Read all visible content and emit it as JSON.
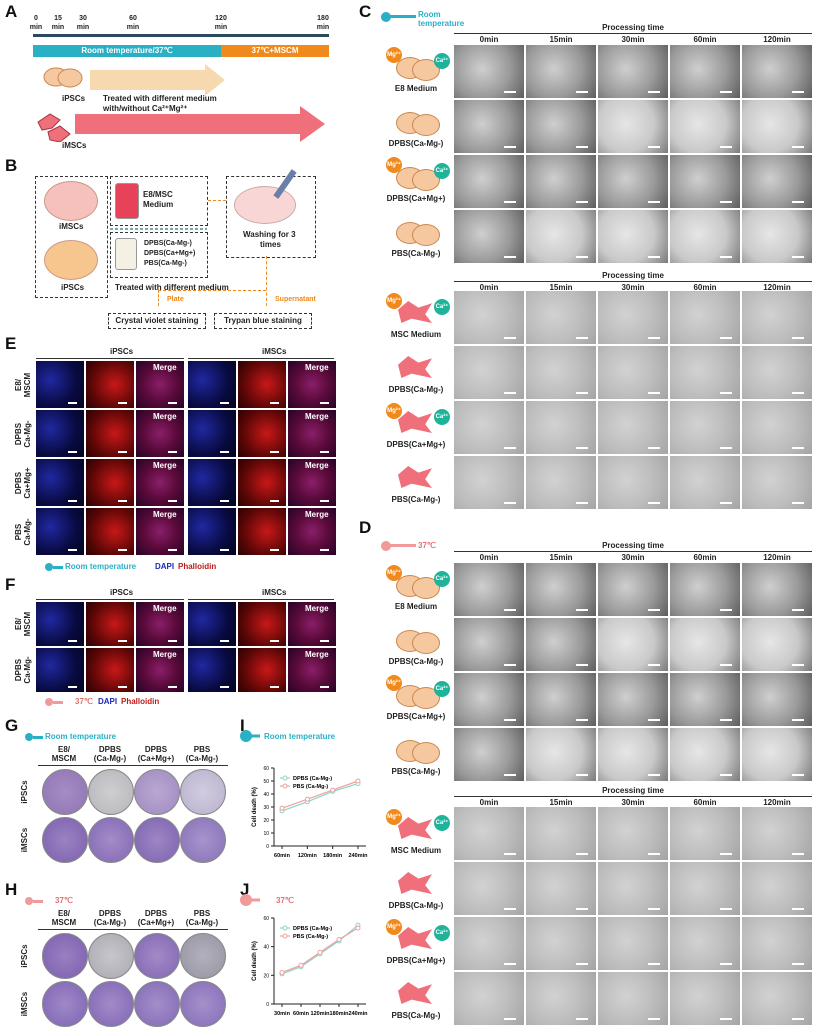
{
  "panel_letters": {
    "A": "A",
    "B": "B",
    "C": "C",
    "D": "D",
    "E": "E",
    "F": "F",
    "G": "G",
    "H": "H",
    "I": "I",
    "J": "J"
  },
  "panelA": {
    "times": [
      "0",
      "15",
      "30",
      "60",
      "120",
      "180"
    ],
    "unit": "min",
    "bar_room": "Room temperature/37℃",
    "bar_mscm": "37℃+MSCM",
    "ipsc_label": "iPSCs",
    "imsc_label": "iMSCs",
    "treat_line1": "Treated with different medium",
    "treat_line2": "with/without Ca²⁺Mg²⁺",
    "colors": {
      "teal": "#2ab0c5",
      "orange": "#f08a1c",
      "arrow_beige": "#f7d9b0",
      "arrow_pink": "#ef6f7b"
    }
  },
  "panelB": {
    "imsc": "iMSCs",
    "ipsc": "iPSCs",
    "medium1": "E8/MSC",
    "medium2": "Medium",
    "buf1": "DPBS(Ca-Mg-)",
    "buf2": "DPBS(Ca+Mg+)",
    "buf3": "PBS(Ca-Mg-)",
    "treated": "Treated with different medium",
    "washing1": "Washing for 3",
    "washing2": "times",
    "plate": "Plate",
    "supernatant": "Supernatant",
    "cv": "Crystal violet staining",
    "tb": "Trypan blue staining"
  },
  "panelC": {
    "legend": "Room",
    "legend2": "temperature",
    "header": "Processing time",
    "times": [
      "0min",
      "15min",
      "30min",
      "60min",
      "120min"
    ],
    "ipsc_rows": [
      "E8 Medium",
      "DPBS(Ca-Mg-)",
      "DPBS(Ca+Mg+)",
      "PBS(Ca-Mg-)"
    ],
    "imsc_rows": [
      "MSC Medium",
      "DPBS(Ca-Mg-)",
      "DPBS(Ca+Mg+)",
      "PBS(Ca-Mg-)"
    ],
    "mg": "Mg²⁺",
    "ca": "Ca²⁺"
  },
  "panelD": {
    "legend": "37℃",
    "header": "Processing time",
    "times": [
      "0min",
      "15min",
      "30min",
      "60min",
      "120min"
    ],
    "ipsc_rows": [
      "E8 Medium",
      "DPBS(Ca-Mg-)",
      "DPBS(Ca+Mg+)",
      "PBS(Ca-Mg-)"
    ],
    "imsc_rows": [
      "MSC Medium",
      "DPBS(Ca-Mg-)",
      "DPBS(Ca+Mg+)",
      "PBS(Ca-Mg-)"
    ]
  },
  "panelE": {
    "ipsc": "iPSCs",
    "imsc": "iMSCs",
    "merge": "Merge",
    "rows": [
      [
        "E8/",
        "MSCM"
      ],
      [
        "DPBS",
        "Ca-Mg-"
      ],
      [
        "DPBS",
        "Ca+Mg+"
      ],
      [
        "PBS",
        "Ca-Mg-"
      ]
    ],
    "legend": "Room temperature",
    "dapi": "DAPI",
    "phalloidin": "Phalloidin"
  },
  "panelF": {
    "ipsc": "iPSCs",
    "imsc": "iMSCs",
    "merge": "Merge",
    "rows": [
      [
        "E8/",
        "MSCM"
      ],
      [
        "DPBS",
        "Ca-Mg-"
      ]
    ],
    "legend": "37℃",
    "dapi": "DAPI",
    "phalloidin": "Phalloidin"
  },
  "panelG": {
    "legend": "Room temperature",
    "cols": [
      [
        "E8/",
        "MSCM"
      ],
      [
        "DPBS",
        "(Ca-Mg-)"
      ],
      [
        "DPBS",
        "(Ca+Mg+)"
      ],
      [
        "PBS",
        "(Ca-Mg-)"
      ]
    ],
    "rows": [
      "iPSCs",
      "iMSCs"
    ]
  },
  "panelH": {
    "legend": "37℃",
    "cols": [
      [
        "E8/",
        "MSCM"
      ],
      [
        "DPBS",
        "(Ca-Mg-)"
      ],
      [
        "DPBS",
        "(Ca+Mg+)"
      ],
      [
        "PBS",
        "(Ca-Mg-)"
      ]
    ],
    "rows": [
      "iPSCs",
      "iMSCs"
    ]
  },
  "chart_data": [
    {
      "type": "line",
      "panel": "I",
      "legend_title": "Room temperature",
      "ylabel": "Cell death (%)",
      "x": [
        "60min",
        "120min",
        "180min",
        "240min"
      ],
      "ylim": [
        0,
        60
      ],
      "yticks": [
        0,
        10,
        20,
        30,
        40,
        50,
        60
      ],
      "series": [
        {
          "name": "DPBS (Ca-Mg-)",
          "values": [
            27,
            34,
            42,
            48
          ],
          "color": "#8fd3c8"
        },
        {
          "name": "PBS (Ca-Mg-)",
          "values": [
            29,
            36,
            43,
            50
          ],
          "color": "#f0a0a0"
        }
      ]
    },
    {
      "type": "line",
      "panel": "J",
      "legend_title": "37℃",
      "ylabel": "Cell death (%)",
      "x": [
        "30min",
        "60min",
        "120min",
        "180min",
        "240min"
      ],
      "ylim": [
        0,
        60
      ],
      "yticks": [
        0,
        20,
        40,
        60
      ],
      "series": [
        {
          "name": "DPBS (Ca-Mg-)",
          "values": [
            21,
            26,
            35,
            44,
            55
          ],
          "color": "#8fd3c8"
        },
        {
          "name": "PBS (Ca-Mg-)",
          "values": [
            22,
            27,
            36,
            45,
            53
          ],
          "color": "#f0a0a0"
        }
      ]
    }
  ]
}
